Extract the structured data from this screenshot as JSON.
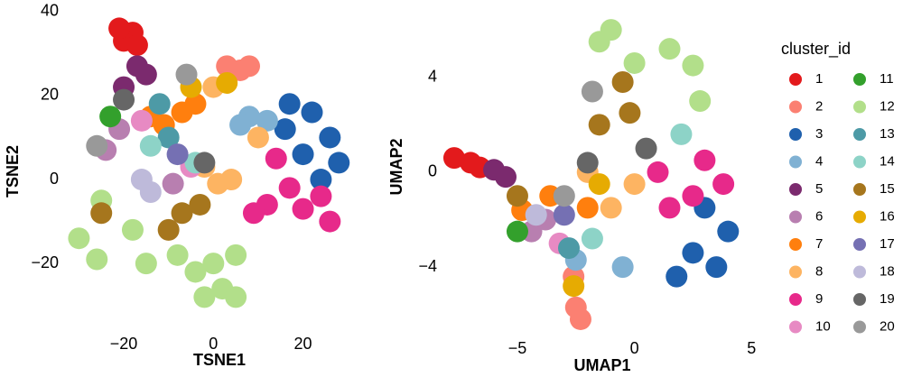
{
  "chart_data": [
    {
      "type": "scatter",
      "x_label": "TSNE1",
      "y_label": "TSNE2",
      "xlim": [
        -32.5,
        35
      ],
      "ylim": [
        -33.5,
        40.6
      ],
      "xticks": [
        {
          "value": -20,
          "label": "−20"
        },
        0,
        20
      ],
      "yticks": [
        {
          "value": -20,
          "label": "−20"
        },
        0,
        20,
        40
      ],
      "series": [
        {
          "color": "#e31a1c",
          "x": [
            -20,
            -18,
            -21,
            -17
          ],
          "y": [
            33,
            35,
            36,
            32
          ]
        },
        {
          "color": "#fb8072",
          "x": [
            3,
            6,
            8
          ],
          "y": [
            27,
            26,
            27
          ]
        },
        {
          "color": "#1f60ad",
          "x": [
            16,
            22,
            26,
            20,
            28,
            24,
            17
          ],
          "y": [
            12,
            16,
            10,
            6,
            4,
            0,
            18
          ]
        },
        {
          "color": "#80b1d3",
          "x": [
            8,
            12,
            6
          ],
          "y": [
            15,
            14,
            13
          ]
        },
        {
          "color": "#7b2a6e",
          "x": [
            -17,
            -15,
            -20
          ],
          "y": [
            27,
            25,
            22
          ]
        },
        {
          "color": "#b87fb0",
          "x": [
            -21,
            -24,
            -9
          ],
          "y": [
            12,
            7,
            -1
          ]
        },
        {
          "color": "#ff7f0e",
          "x": [
            -11,
            -14,
            -7,
            -4
          ],
          "y": [
            13,
            15,
            16,
            18
          ]
        },
        {
          "color": "#fdb462",
          "x": [
            1,
            -2,
            4,
            10,
            0
          ],
          "y": [
            -1,
            3,
            0,
            10,
            22
          ]
        },
        {
          "color": "#e7298a",
          "x": [
            17,
            12,
            20,
            24,
            14,
            26,
            9
          ],
          "y": [
            -2,
            -6,
            -7,
            -4,
            5,
            -10,
            -8
          ]
        },
        {
          "color": "#e78ac3",
          "x": [
            -16,
            -5
          ],
          "y": [
            14,
            3
          ]
        },
        {
          "color": "#33a02c",
          "x": [
            -23
          ],
          "y": [
            15
          ]
        },
        {
          "color": "#b2df8a",
          "x": [
            -4,
            0,
            2,
            -8,
            5,
            -30,
            -26,
            -25,
            -18,
            -15,
            -2,
            5
          ],
          "y": [
            -22,
            -20,
            -26,
            -18,
            -18,
            -14,
            -19,
            -5,
            -12,
            -20,
            -28,
            -28
          ]
        },
        {
          "color": "#4d9aa6",
          "x": [
            -10,
            -12
          ],
          "y": [
            10,
            18
          ]
        },
        {
          "color": "#8dd3c7",
          "x": [
            -14,
            -4
          ],
          "y": [
            8,
            4
          ]
        },
        {
          "color": "#a6761d",
          "x": [
            -7,
            -10,
            -3,
            -25
          ],
          "y": [
            -8,
            -12,
            -6,
            -8
          ]
        },
        {
          "color": "#e6ab02",
          "x": [
            3,
            -5
          ],
          "y": [
            23,
            22
          ]
        },
        {
          "color": "#7570b3",
          "x": [
            -8
          ],
          "y": [
            6
          ]
        },
        {
          "color": "#bebada",
          "x": [
            -16,
            -14
          ],
          "y": [
            0,
            -3
          ]
        },
        {
          "color": "#666666",
          "x": [
            -2,
            -20
          ],
          "y": [
            4,
            19
          ]
        },
        {
          "color": "#999999",
          "x": [
            -6,
            -26
          ],
          "y": [
            25,
            8
          ]
        }
      ]
    },
    {
      "type": "scatter",
      "x_label": "UMAP1",
      "y_label": "UMAP2",
      "legend_title": "cluster_id",
      "xlim": [
        -8.2,
        5.3
      ],
      "ylim": [
        -7,
        6.5
      ],
      "xticks": [
        {
          "value": -5,
          "label": "−5"
        },
        0,
        5
      ],
      "yticks": [
        {
          "value": -4,
          "label": "−4"
        },
        0,
        4
      ],
      "series": [
        {
          "name": "1",
          "color": "#e31a1c",
          "x": [
            -7,
            -7.7,
            -6.6
          ],
          "y": [
            0.4,
            0.6,
            0.2
          ]
        },
        {
          "name": "2",
          "color": "#fb8072",
          "x": [
            -2.5,
            -2.3,
            -2.6
          ],
          "y": [
            -5.7,
            -6.2,
            -4.4
          ]
        },
        {
          "name": "3",
          "color": "#1f60ad",
          "x": [
            2.5,
            3.5,
            4,
            1.8,
            3
          ],
          "y": [
            -3.4,
            -4,
            -2.5,
            -4.4,
            -1.5
          ]
        },
        {
          "name": "4",
          "color": "#80b1d3",
          "x": [
            -0.5,
            -2.5
          ],
          "y": [
            -4,
            -3.7
          ]
        },
        {
          "name": "5",
          "color": "#7b2a6e",
          "x": [
            -6,
            -5.5
          ],
          "y": [
            0.1,
            -0.2
          ]
        },
        {
          "name": "6",
          "color": "#b87fb0",
          "x": [
            -4.4,
            -3.8
          ],
          "y": [
            -2.5,
            -2
          ]
        },
        {
          "name": "7",
          "color": "#ff7f0e",
          "x": [
            -4.8,
            -3.6,
            -2
          ],
          "y": [
            -1.6,
            -1,
            -1.5
          ]
        },
        {
          "name": "8",
          "color": "#fdb462",
          "x": [
            -1,
            0,
            -2
          ],
          "y": [
            -1.5,
            -0.5,
            0
          ]
        },
        {
          "name": "9",
          "color": "#e7298a",
          "x": [
            2.5,
            3.8,
            1,
            1.5,
            3
          ],
          "y": [
            -1,
            -0.5,
            0,
            -1.5,
            0.5
          ]
        },
        {
          "name": "10",
          "color": "#e78ac3",
          "x": [
            -3.2
          ],
          "y": [
            -3
          ]
        },
        {
          "name": "11",
          "color": "#33a02c",
          "x": [
            -5
          ],
          "y": [
            -2.5
          ]
        },
        {
          "name": "12",
          "color": "#b2df8a",
          "x": [
            0,
            1.5,
            -1.5,
            2.5,
            -1,
            2.8
          ],
          "y": [
            4.6,
            5.2,
            5.5,
            4.5,
            6,
            3
          ]
        },
        {
          "name": "13",
          "color": "#4d9aa6",
          "x": [
            -2.8
          ],
          "y": [
            -3.2
          ]
        },
        {
          "name": "14",
          "color": "#8dd3c7",
          "x": [
            -1.8,
            2
          ],
          "y": [
            -2.8,
            1.6
          ]
        },
        {
          "name": "15",
          "color": "#a6761d",
          "x": [
            -0.2,
            -0.5,
            -1.5,
            -5
          ],
          "y": [
            2.5,
            3.8,
            2,
            -1
          ]
        },
        {
          "name": "16",
          "color": "#e6ab02",
          "x": [
            -2.6,
            -1.5
          ],
          "y": [
            -4.8,
            -0.5
          ]
        },
        {
          "name": "17",
          "color": "#7570b3",
          "x": [
            -3
          ],
          "y": [
            -1.8
          ]
        },
        {
          "name": "18",
          "color": "#bebada",
          "x": [
            -4.2
          ],
          "y": [
            -1.8
          ]
        },
        {
          "name": "19",
          "color": "#666666",
          "x": [
            -2,
            0.5
          ],
          "y": [
            0.4,
            1
          ]
        },
        {
          "name": "20",
          "color": "#999999",
          "x": [
            -3,
            -1.8
          ],
          "y": [
            -1,
            3.4
          ]
        }
      ]
    }
  ]
}
